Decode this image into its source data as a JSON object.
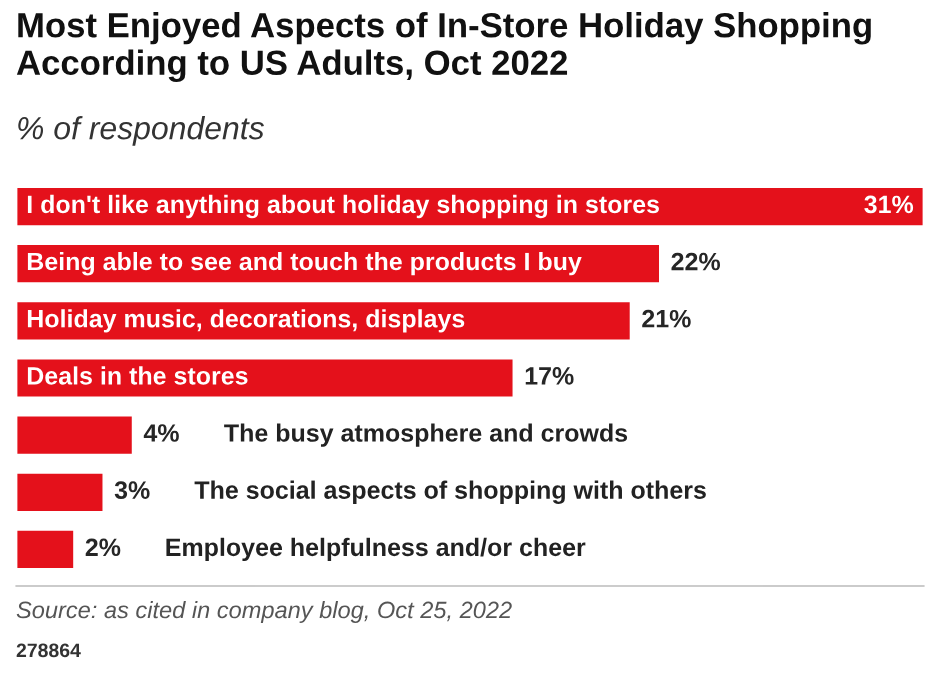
{
  "chart_data": {
    "type": "bar",
    "orientation": "horizontal",
    "title": "Most Enjoyed Aspects of In-Store Holiday Shopping According to US Adults, Oct 2022",
    "subtitle": "% of respondents",
    "categories": [
      "I don't like anything about holiday shopping in stores",
      "Being able to see and touch the products I buy",
      "Holiday music, decorations, displays",
      "Deals in the stores",
      "The busy atmosphere and crowds",
      "The social aspects of shopping with others",
      "Employee helpfulness and/or cheer"
    ],
    "values": [
      31,
      22,
      21,
      17,
      4,
      3,
      2
    ],
    "value_labels": [
      "31%",
      "22%",
      "21%",
      "17%",
      "4%",
      "3%",
      "2%"
    ],
    "color": "#e4111b",
    "grid": false,
    "legend": false,
    "tick_labels": false,
    "annotations": [
      "Source: as cited in company blog, Oct 25, 2022",
      "278864"
    ]
  }
}
